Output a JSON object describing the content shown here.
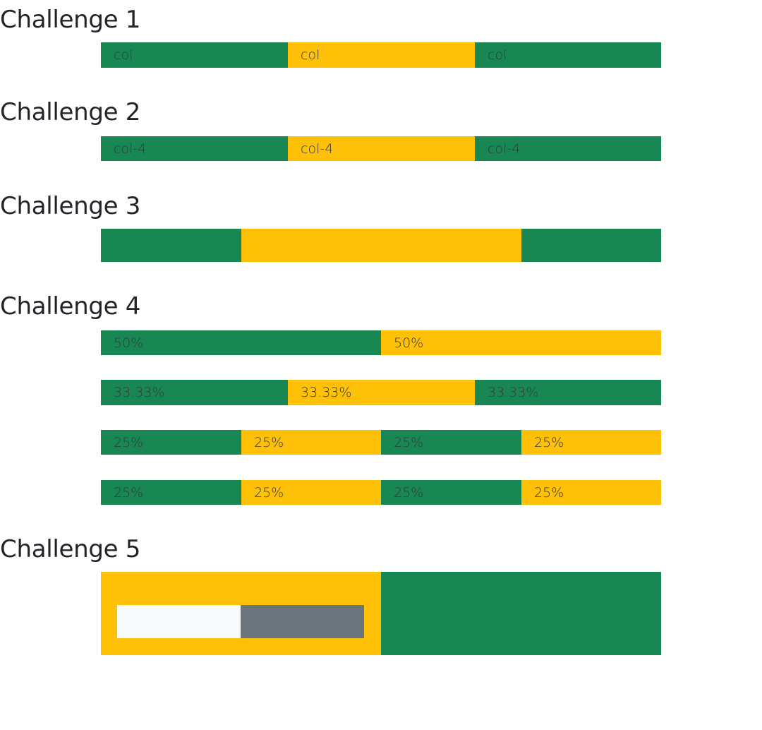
{
  "challenges": [
    {
      "title": "Challenge 1"
    },
    {
      "title": "Challenge 2"
    },
    {
      "title": "Challenge 3"
    },
    {
      "title": "Challenge 4"
    },
    {
      "title": "Challenge 5"
    }
  ],
  "c1": {
    "cols": [
      "col",
      "col",
      "col"
    ]
  },
  "c2": {
    "cols": [
      "col-4",
      "col-4",
      "col-4"
    ]
  },
  "c4": {
    "row1": [
      "50%",
      "50%"
    ],
    "row2": [
      "33.33%",
      "33.33%",
      "33.33%"
    ],
    "row3": [
      "25%",
      "25%",
      "25%",
      "25%"
    ],
    "row4": [
      "25%",
      "25%",
      "25%",
      "25%"
    ]
  },
  "colors": {
    "green": "#198754",
    "yellow": "#ffc107",
    "light": "#f8f9fa",
    "gray": "#6c757d"
  }
}
